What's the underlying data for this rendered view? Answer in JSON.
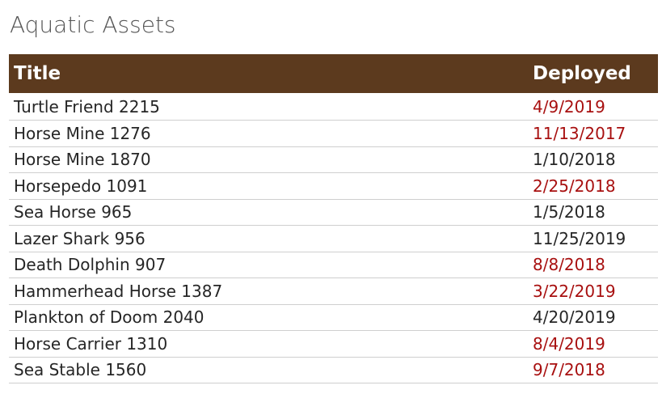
{
  "page": {
    "title": "Aquatic Assets"
  },
  "colors": {
    "header_bg": "#5c3a1e",
    "header_text": "#ffffff",
    "date_highlight": "#a81010",
    "row_divider": "#cfcfcf"
  },
  "table": {
    "columns": [
      "Title",
      "Deployed"
    ],
    "rows": [
      {
        "title": "Turtle Friend 2215",
        "deployed": "4/9/2019",
        "highlight": true
      },
      {
        "title": "Horse Mine 1276",
        "deployed": "11/13/2017",
        "highlight": true
      },
      {
        "title": "Horse Mine 1870",
        "deployed": "1/10/2018",
        "highlight": false
      },
      {
        "title": "Horsepedo 1091",
        "deployed": "2/25/2018",
        "highlight": true
      },
      {
        "title": "Sea Horse 965",
        "deployed": "1/5/2018",
        "highlight": false
      },
      {
        "title": "Lazer Shark 956",
        "deployed": "11/25/2019",
        "highlight": false
      },
      {
        "title": "Death Dolphin 907",
        "deployed": "8/8/2018",
        "highlight": true
      },
      {
        "title": "Hammerhead Horse 1387",
        "deployed": "3/22/2019",
        "highlight": true
      },
      {
        "title": "Plankton of Doom 2040",
        "deployed": "4/20/2019",
        "highlight": false
      },
      {
        "title": "Horse Carrier 1310",
        "deployed": "8/4/2019",
        "highlight": true
      },
      {
        "title": "Sea Stable 1560",
        "deployed": "9/7/2018",
        "highlight": true
      }
    ]
  }
}
